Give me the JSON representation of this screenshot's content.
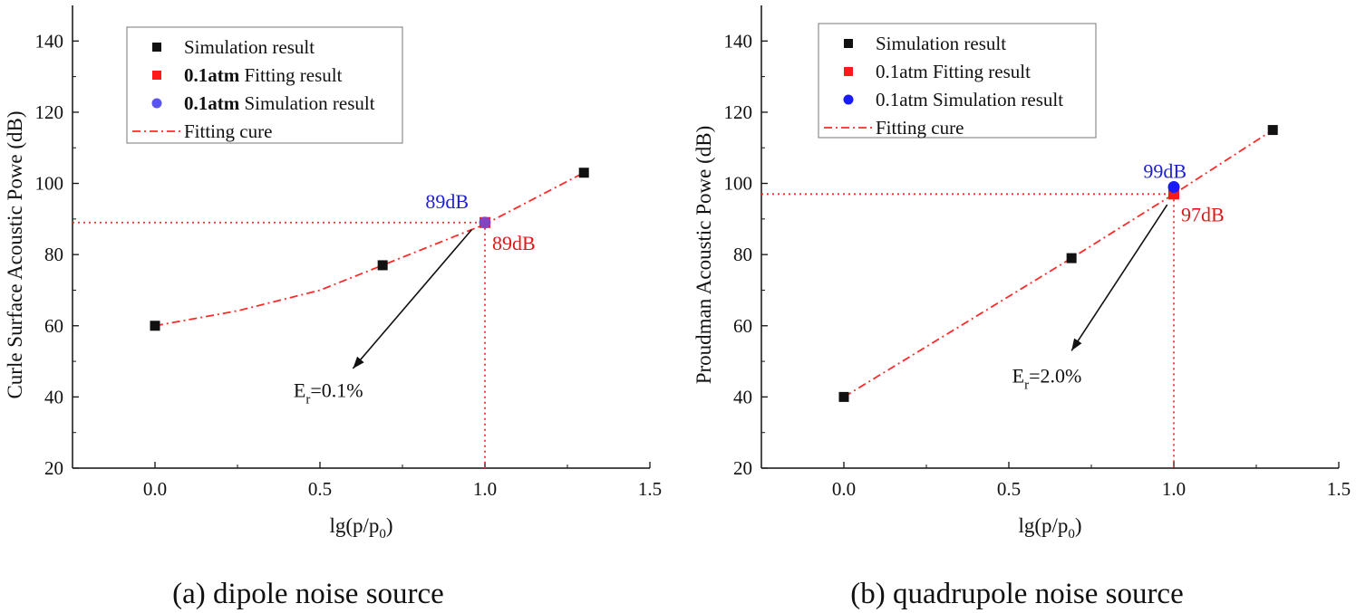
{
  "chart_data": [
    {
      "id": "a",
      "type": "scatter",
      "caption": "(a) dipole noise source",
      "xlabel": "lg(p/p",
      "xlabel_sub": "0",
      "xlabel_close": ")",
      "ylabel": "Curle Surface Acoustic Powe (dB)",
      "xlim": [
        -0.25,
        1.5
      ],
      "ylim": [
        20,
        150
      ],
      "xticks": [
        "0.0",
        "0.5",
        "1.0",
        "1.5"
      ],
      "xtick_values": [
        0.0,
        0.5,
        1.0,
        1.5
      ],
      "yticks": [
        "20",
        "40",
        "60",
        "80",
        "100",
        "120",
        "140"
      ],
      "ytick_values": [
        20,
        40,
        60,
        80,
        100,
        120,
        140
      ],
      "legend": {
        "position": "top-left",
        "entries": [
          {
            "label": "Simulation result",
            "marker": "square",
            "color": "#111111"
          },
          {
            "label_bold": "0.1atm",
            "label": " Fitting result",
            "marker": "square",
            "color": "#ff1a1a"
          },
          {
            "label_bold": "0.1atm",
            "label": " Simulation result",
            "marker": "circle",
            "color": "#5b55f0"
          },
          {
            "label": "Fitting cure",
            "marker": "dashdot",
            "color": "#ff2a2a"
          }
        ]
      },
      "series": [
        {
          "name": "Simulation result",
          "x": [
            0.0,
            0.69,
            1.3
          ],
          "y": [
            60,
            77,
            103
          ],
          "color": "#111111"
        },
        {
          "name": "0.1atm Fitting result",
          "x": [
            1.0
          ],
          "y": [
            89
          ],
          "color": "#ff1a1a"
        },
        {
          "name": "0.1atm Simulation result",
          "x": [
            1.0
          ],
          "y": [
            89
          ],
          "color": "#6a4fe0"
        },
        {
          "name": "Fitting cure",
          "x": [
            0.0,
            0.25,
            0.5,
            0.69,
            1.0,
            1.3
          ],
          "y": [
            60,
            64.2,
            70.0,
            77,
            88.5,
            103
          ],
          "color": "#ff2a2a"
        }
      ],
      "reference_lines": {
        "x": 1.0,
        "y": 89,
        "color": "#ff2a2a"
      },
      "annotations": [
        {
          "text": "89dB",
          "x": 1.0,
          "y": 89,
          "color": "#1f1fd8",
          "where": "above-left"
        },
        {
          "text": "89dB",
          "x": 1.0,
          "y": 89,
          "color": "#e01818",
          "where": "below-right"
        }
      ],
      "error_note": {
        "text": "E",
        "sub": "r",
        "value": "=0.1%",
        "arrow_from": [
          0.96,
          87
        ],
        "arrow_to": [
          0.6,
          48
        ],
        "label_at": [
          0.42,
          40
        ]
      }
    },
    {
      "id": "b",
      "type": "scatter",
      "caption": "(b) quadrupole noise source",
      "xlabel": "lg(p/p",
      "xlabel_sub": "0",
      "xlabel_close": ")",
      "ylabel": "Proudman Acoustic Powe (dB)",
      "xlim": [
        -0.25,
        1.5
      ],
      "ylim": [
        20,
        150
      ],
      "xticks": [
        "0.0",
        "0.5",
        "1.0",
        "1.5"
      ],
      "xtick_values": [
        0.0,
        0.5,
        1.0,
        1.5
      ],
      "yticks": [
        "20",
        "40",
        "60",
        "80",
        "100",
        "120",
        "140"
      ],
      "ytick_values": [
        20,
        40,
        60,
        80,
        100,
        120,
        140
      ],
      "legend": {
        "position": "top-left",
        "entries": [
          {
            "label": "Simulation result",
            "marker": "square",
            "color": "#111111"
          },
          {
            "label": "0.1atm Fitting result",
            "marker": "square",
            "color": "#ff1a1a"
          },
          {
            "label": "0.1atm Simulation result",
            "marker": "circle",
            "color": "#1a1aff"
          },
          {
            "label": "Fitting cure",
            "marker": "dashdot",
            "color": "#ff2a2a"
          }
        ]
      },
      "series": [
        {
          "name": "Simulation result",
          "x": [
            0.0,
            0.69,
            1.3
          ],
          "y": [
            40,
            79,
            115
          ],
          "color": "#111111"
        },
        {
          "name": "0.1atm Fitting result",
          "x": [
            1.0
          ],
          "y": [
            97
          ],
          "color": "#ff1a1a"
        },
        {
          "name": "0.1atm Simulation result",
          "x": [
            1.0
          ],
          "y": [
            99
          ],
          "color": "#1a1aff"
        },
        {
          "name": "Fitting cure",
          "x": [
            0.0,
            0.69,
            1.0,
            1.3
          ],
          "y": [
            40,
            79,
            97,
            115
          ],
          "color": "#ff2a2a"
        }
      ],
      "reference_lines": {
        "x": 1.0,
        "y": 97,
        "color": "#ff2a2a"
      },
      "annotations": [
        {
          "text": "99dB",
          "x": 1.0,
          "y": 99,
          "color": "#1f1fd8",
          "where": "above-left"
        },
        {
          "text": "97dB",
          "x": 1.0,
          "y": 97,
          "color": "#e01818",
          "where": "below-right"
        }
      ],
      "error_note": {
        "text": "E",
        "sub": "r",
        "value": "=2.0%",
        "arrow_from": [
          0.98,
          94
        ],
        "arrow_to": [
          0.69,
          53
        ],
        "label_at": [
          0.51,
          44
        ]
      }
    }
  ]
}
